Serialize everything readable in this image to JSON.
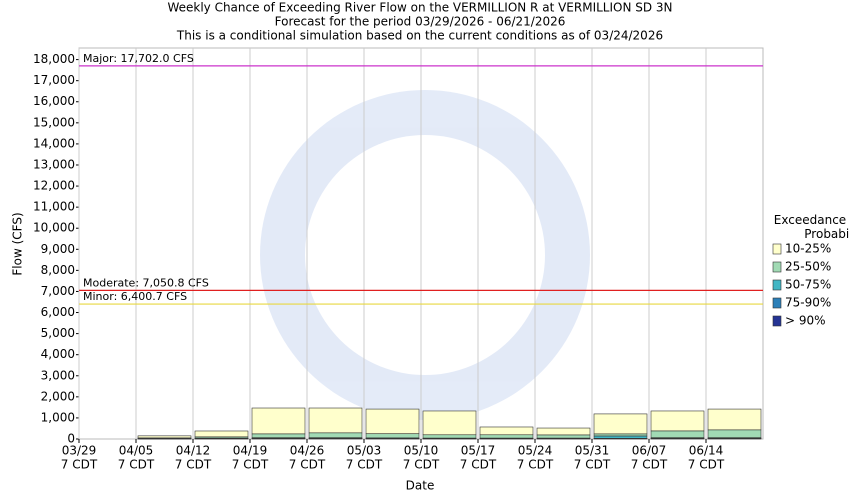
{
  "chart_data": {
    "type": "bar",
    "title": [
      "Weekly Chance of Exceeding River Flow on the VERMILLION R at VERMILLION SD 3N",
      "Forecast for the period 03/29/2026 - 06/21/2026",
      "This is a conditional simulation based on the current conditions as of 03/24/2026"
    ],
    "x_label": "Date",
    "y_label": "Flow (CFS)",
    "categories": [
      "03/29",
      "04/05",
      "04/12",
      "04/19",
      "04/26",
      "05/03",
      "05/10",
      "05/17",
      "05/24",
      "05/31",
      "06/07",
      "06/14"
    ],
    "category_times": [
      "7 CDT",
      "7 CDT",
      "7 CDT",
      "7 CDT",
      "7 CDT",
      "7 CDT",
      "7 CDT",
      "7 CDT",
      "7 CDT",
      "7 CDT",
      "7 CDT",
      "7 CDT"
    ],
    "legend_title": "Exceedance Probability",
    "series": [
      {
        "name": "10-25%",
        "color": "#ffffcc",
        "values": [
          null,
          150,
          380,
          1470,
          1470,
          1420,
          1330,
          570,
          520,
          1190,
          1330,
          1420
        ]
      },
      {
        "name": "25-50%",
        "color": "#a1dab4",
        "values": [
          null,
          50,
          100,
          240,
          290,
          250,
          200,
          200,
          190,
          240,
          380,
          430
        ]
      },
      {
        "name": "50-75%",
        "color": "#41b6c4",
        "values": [
          null,
          20,
          40,
          60,
          60,
          50,
          40,
          40,
          40,
          140,
          60,
          60
        ]
      },
      {
        "name": "75-90%",
        "color": "#2c7fb8",
        "values": [
          null,
          10,
          20,
          30,
          30,
          25,
          20,
          20,
          20,
          30,
          30,
          30
        ]
      },
      {
        "name": "> 90%",
        "color": "#253494",
        "values": [
          null,
          5,
          10,
          15,
          15,
          12,
          10,
          10,
          10,
          15,
          15,
          15
        ]
      }
    ],
    "thresholds": [
      {
        "name": "Major",
        "value": 17702.0,
        "label": "Major: 17,702.0 CFS",
        "color": "#cc33cc"
      },
      {
        "name": "Moderate",
        "value": 7050.8,
        "label": "Moderate: 7,050.8 CFS",
        "color": "#e02020"
      },
      {
        "name": "Minor",
        "value": 6400.7,
        "label": "Minor: 6,400.7 CFS",
        "color": "#e8d840"
      }
    ],
    "ylim": [
      0,
      18550
    ],
    "yticks": [
      0,
      {
        "value": 1000,
        "label": "1,000"
      },
      {
        "value": 2000,
        "label": "2,000"
      },
      {
        "value": 3000,
        "label": "3,000"
      },
      {
        "value": 4000,
        "label": "4,000"
      },
      {
        "value": 5000,
        "label": "5,000"
      },
      {
        "value": 6000,
        "label": "6,000"
      },
      {
        "value": 7000,
        "label": "7,000"
      },
      {
        "value": 8000,
        "label": "8,000"
      },
      {
        "value": 9000,
        "label": "9,000"
      },
      {
        "value": 10000,
        "label": "10,000"
      },
      {
        "value": 11000,
        "label": "11,000"
      },
      {
        "value": 12000,
        "label": "12,000"
      },
      {
        "value": 13000,
        "label": "13,000"
      },
      {
        "value": 14000,
        "label": "14,000"
      },
      {
        "value": 15000,
        "label": "15,000"
      },
      {
        "value": 16000,
        "label": "16,000"
      },
      {
        "value": 17000,
        "label": "17,000"
      },
      {
        "value": 18000,
        "label": "18,000"
      }
    ],
    "grid": true
  }
}
